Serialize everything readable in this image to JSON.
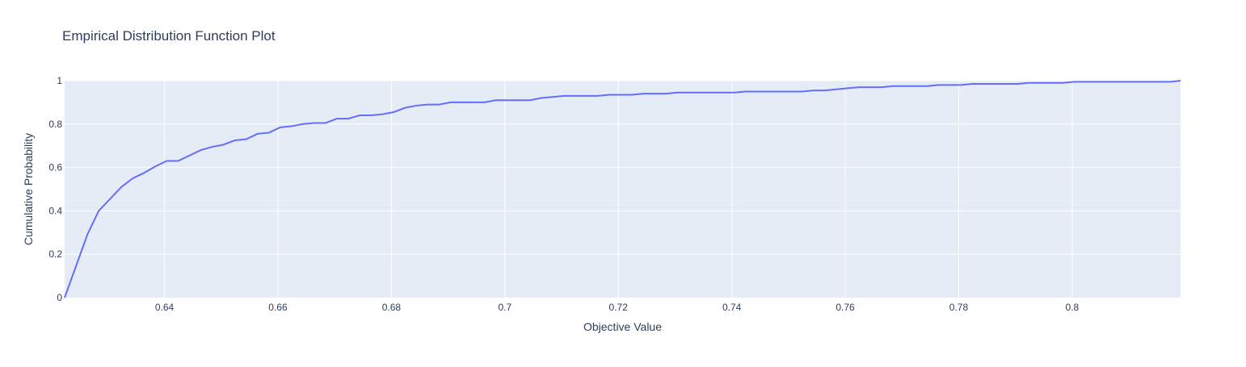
{
  "chart_data": {
    "type": "line",
    "title": "Empirical Distribution Function Plot",
    "xlabel": "Objective Value",
    "ylabel": "Cumulative Probability",
    "xlim": [
      0.6224,
      0.8191
    ],
    "ylim": [
      0,
      1
    ],
    "x_ticks": [
      0.64,
      0.66,
      0.68,
      0.7,
      0.72,
      0.74,
      0.76,
      0.78,
      0.8
    ],
    "x_tick_labels": [
      "0.64",
      "0.66",
      "0.68",
      "0.7",
      "0.72",
      "0.74",
      "0.76",
      "0.78",
      "0.8"
    ],
    "y_ticks": [
      0,
      0.2,
      0.4,
      0.6,
      0.8,
      1
    ],
    "y_tick_labels": [
      "0",
      "0.2",
      "0.4",
      "0.6",
      "0.8",
      "1"
    ],
    "grid": true,
    "plot_background": "#e5ecf6",
    "series": [
      {
        "color": "#636efa",
        "x": [
          0.6224,
          0.6264,
          0.6284,
          0.6324,
          0.6344,
          0.6364,
          0.6384,
          0.6404,
          0.6424,
          0.6444,
          0.6464,
          0.6484,
          0.6504,
          0.6524,
          0.6544,
          0.6564,
          0.6584,
          0.6604,
          0.6624,
          0.6644,
          0.6664,
          0.6684,
          0.6704,
          0.6724,
          0.6744,
          0.6764,
          0.6784,
          0.6804,
          0.6824,
          0.6844,
          0.6864,
          0.6884,
          0.6904,
          0.6924,
          0.6944,
          0.6964,
          0.6984,
          0.7004,
          0.7044,
          0.7064,
          0.7104,
          0.7164,
          0.7184,
          0.7224,
          0.7244,
          0.7284,
          0.7304,
          0.7404,
          0.7424,
          0.7524,
          0.7544,
          0.7564,
          0.7604,
          0.7624,
          0.7664,
          0.7684,
          0.7744,
          0.7764,
          0.7804,
          0.7824,
          0.7904,
          0.7924,
          0.7984,
          0.8004,
          0.8174,
          0.8191
        ],
        "y": [
          0.0,
          0.29,
          0.4,
          0.51,
          0.55,
          0.575,
          0.605,
          0.63,
          0.63,
          0.655,
          0.68,
          0.695,
          0.705,
          0.725,
          0.73,
          0.755,
          0.76,
          0.785,
          0.79,
          0.8,
          0.805,
          0.805,
          0.825,
          0.825,
          0.84,
          0.84,
          0.845,
          0.855,
          0.875,
          0.885,
          0.89,
          0.89,
          0.9,
          0.9,
          0.9,
          0.9,
          0.91,
          0.91,
          0.91,
          0.92,
          0.93,
          0.93,
          0.935,
          0.935,
          0.94,
          0.94,
          0.945,
          0.945,
          0.95,
          0.95,
          0.955,
          0.955,
          0.965,
          0.97,
          0.97,
          0.975,
          0.975,
          0.98,
          0.98,
          0.985,
          0.985,
          0.99,
          0.99,
          0.995,
          0.995,
          1.0
        ]
      }
    ]
  }
}
